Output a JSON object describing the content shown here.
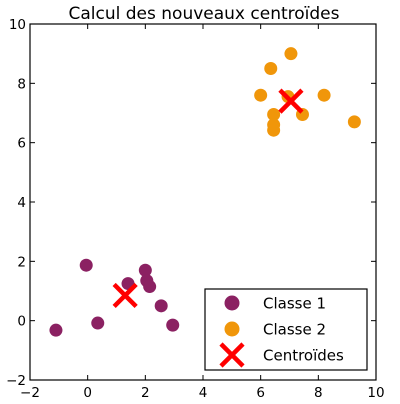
{
  "chart_data": {
    "type": "scatter",
    "title": "Calcul des nouveaux centroïdes",
    "xlabel": "",
    "ylabel": "",
    "xlim": [
      -2,
      10
    ],
    "ylim": [
      -2,
      10
    ],
    "xticks": [
      "−2",
      "0",
      "2",
      "4",
      "6",
      "8",
      "10"
    ],
    "yticks": [
      "−2",
      "0",
      "2",
      "4",
      "6",
      "8",
      "10"
    ],
    "grid": false,
    "legend_position": "lower-right",
    "series": [
      {
        "name": "Classe 1",
        "marker": "circle",
        "color": "#8b2162",
        "points": [
          [
            -1.1,
            -0.32
          ],
          [
            -0.05,
            1.87
          ],
          [
            0.35,
            -0.08
          ],
          [
            1.4,
            1.25
          ],
          [
            2.0,
            1.7
          ],
          [
            2.05,
            1.35
          ],
          [
            2.15,
            1.15
          ],
          [
            2.55,
            0.5
          ],
          [
            2.95,
            -0.15
          ]
        ]
      },
      {
        "name": "Classe 2",
        "marker": "circle",
        "color": "#f0960a",
        "points": [
          [
            6.0,
            7.6
          ],
          [
            6.35,
            8.5
          ],
          [
            6.45,
            6.95
          ],
          [
            6.45,
            6.6
          ],
          [
            6.45,
            6.42
          ],
          [
            6.95,
            7.55
          ],
          [
            7.05,
            9.0
          ],
          [
            7.45,
            6.95
          ],
          [
            8.2,
            7.6
          ],
          [
            9.25,
            6.7
          ]
        ]
      },
      {
        "name": "Centroïdes",
        "marker": "x",
        "color": "#ff0000",
        "points": [
          [
            1.3,
            0.85
          ],
          [
            7.05,
            7.4
          ]
        ]
      }
    ]
  }
}
